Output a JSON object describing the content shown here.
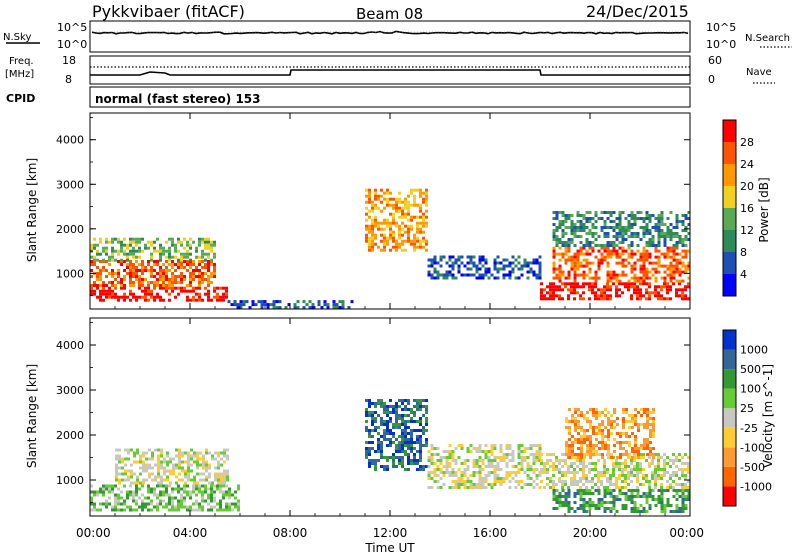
{
  "header": {
    "station": "Pykkvibaer (fitACF)",
    "beam": "Beam 08",
    "date": "24/Dec/2015"
  },
  "sky_panel": {
    "label": "N.Sky",
    "ticks_left": [
      "10^5",
      "10^0"
    ],
    "ticks_right": [
      "10^5",
      "10^0"
    ],
    "right_label": "N.Search"
  },
  "freq_panel": {
    "label_line1": "Freq.",
    "label_line2": "[MHz]",
    "ticks_left": [
      "18",
      "8"
    ],
    "ticks_right": [
      "60",
      "0"
    ],
    "right_label": "Nave"
  },
  "cpid": {
    "label": "CPID",
    "text": "normal (fast stereo) 153"
  },
  "colors": {
    "power_scale": [
      "#0000ff",
      "#1e4fb4",
      "#2e8b57",
      "#5aaa55",
      "#f0d020",
      "#ff9900",
      "#ff5500",
      "#ff0000"
    ],
    "velocity_scale": [
      "#ff0000",
      "#ff6600",
      "#ff9933",
      "#ffcc33",
      "#c8c8c0",
      "#66cc33",
      "#339933",
      "#336699",
      "#0033cc"
    ]
  },
  "chart_data": [
    {
      "type": "heatmap",
      "name": "power",
      "xlabel": "",
      "ylabel": "Slant Range [km]",
      "xlim": [
        0,
        24
      ],
      "ylim": [
        200,
        4600
      ],
      "yticks": [
        "1000",
        "2000",
        "3000",
        "4000"
      ],
      "colorbar_label": "Power [dB]",
      "colorbar_ticks": [
        "4",
        "8",
        "12",
        "16",
        "20",
        "24",
        "28"
      ],
      "echo_regions": [
        {
          "t0": 0.0,
          "t1": 5.5,
          "r0": 400,
          "r1": 700,
          "level": 7
        },
        {
          "t0": 0.0,
          "t1": 5.0,
          "r0": 700,
          "r1": 1300,
          "level": 6
        },
        {
          "t0": 0.0,
          "t1": 5.0,
          "r0": 1300,
          "r1": 1800,
          "level": 3
        },
        {
          "t0": 5.5,
          "t1": 10.5,
          "r0": 250,
          "r1": 400,
          "level": 1
        },
        {
          "t0": 11.0,
          "t1": 13.5,
          "r0": 1500,
          "r1": 2900,
          "level": 5
        },
        {
          "t0": 13.5,
          "t1": 18.0,
          "r0": 900,
          "r1": 1400,
          "level": 1
        },
        {
          "t0": 18.0,
          "t1": 24.0,
          "r0": 400,
          "r1": 800,
          "level": 7
        },
        {
          "t0": 18.5,
          "t1": 24.0,
          "r0": 800,
          "r1": 1600,
          "level": 6
        },
        {
          "t0": 18.5,
          "t1": 24.0,
          "r0": 1600,
          "r1": 2400,
          "level": 2
        }
      ]
    },
    {
      "type": "heatmap",
      "name": "velocity",
      "xlabel": "Time UT",
      "ylabel": "Slant Range [km]",
      "xlim": [
        0,
        24
      ],
      "ylim": [
        200,
        4600
      ],
      "xticks": [
        "00:00",
        "04:00",
        "08:00",
        "12:00",
        "16:00",
        "20:00",
        "00:00"
      ],
      "yticks": [
        "1000",
        "2000",
        "3000",
        "4000"
      ],
      "colorbar_label": "Velocity [m s^-1]",
      "colorbar_ticks": [
        "1000",
        "500",
        "100",
        "25",
        "-25",
        "-100",
        "-500",
        "-1000"
      ],
      "echo_regions": [
        {
          "t0": 0.0,
          "t1": 6.0,
          "r0": 300,
          "r1": 900,
          "level": 5
        },
        {
          "t0": 1.0,
          "t1": 5.5,
          "r0": 900,
          "r1": 1700,
          "level": 4
        },
        {
          "t0": 11.0,
          "t1": 13.5,
          "r0": 1200,
          "r1": 2800,
          "level": 7
        },
        {
          "t0": 13.5,
          "t1": 18.0,
          "r0": 800,
          "r1": 1800,
          "level": 4
        },
        {
          "t0": 18.5,
          "t1": 24.0,
          "r0": 300,
          "r1": 800,
          "level": 6
        },
        {
          "t0": 18.0,
          "t1": 24.0,
          "r0": 800,
          "r1": 1600,
          "level": 4
        },
        {
          "t0": 19.0,
          "t1": 22.5,
          "r0": 1500,
          "r1": 2600,
          "level": 2
        }
      ]
    }
  ]
}
